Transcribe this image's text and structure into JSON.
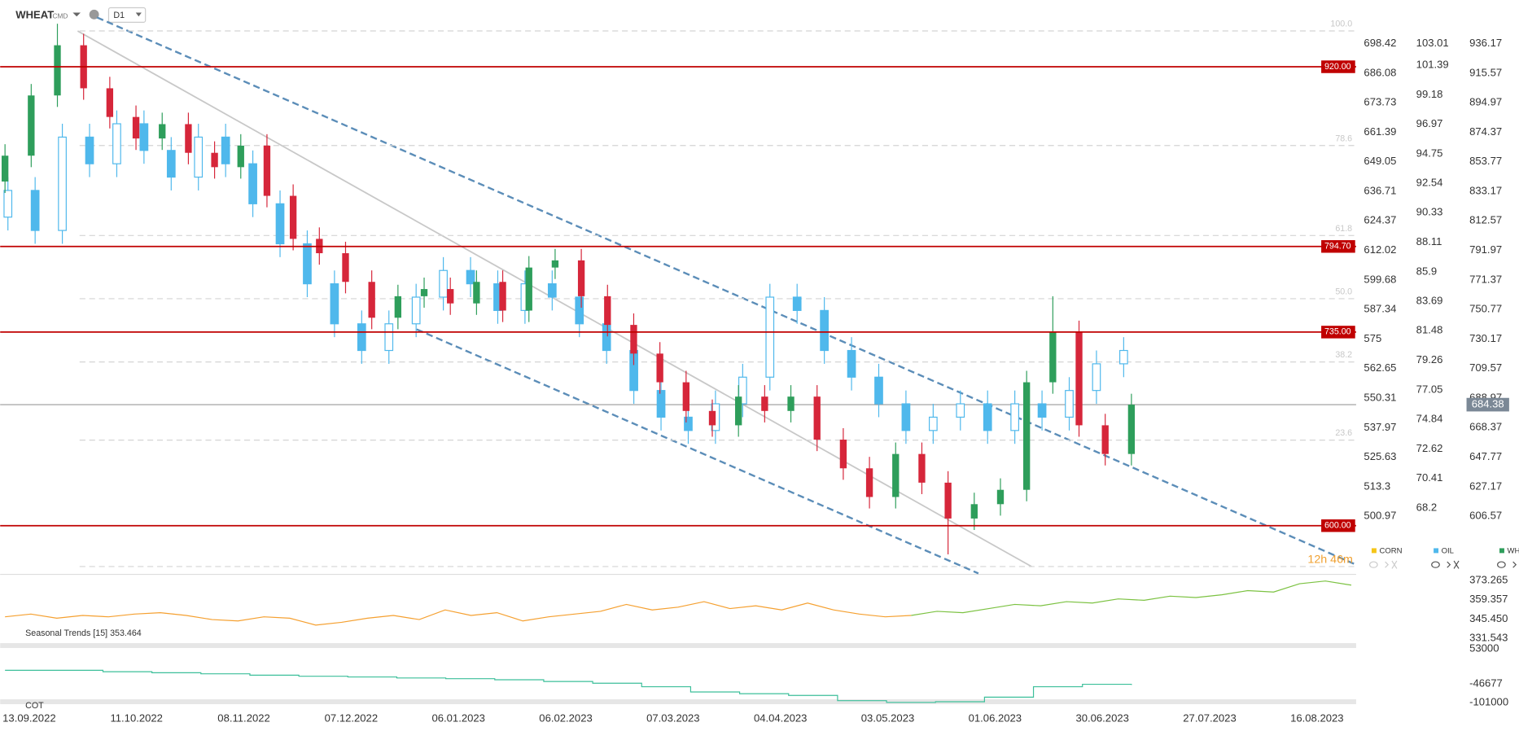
{
  "header": {
    "symbol": "WHEAT",
    "market": "CMD",
    "interval": "D1"
  },
  "chart_data": {
    "type": "candlestick",
    "categories": [
      "13.09.2022",
      "11.10.2022",
      "08.11.2022",
      "07.12.2022",
      "06.01.2023",
      "06.02.2023",
      "07.03.2023",
      "04.04.2023",
      "03.05.2023",
      "01.06.2023",
      "30.06.2023",
      "27.07.2023",
      "16.08.2023"
    ],
    "legend": [
      {
        "name": "CORN",
        "color": "#f5c518"
      },
      {
        "name": "OIL",
        "color": "#4fb8ec"
      },
      {
        "name": "WHEAT",
        "color": "#2e9e5b"
      }
    ],
    "countdown": "12h 46m",
    "corn_ticks": [
      698.42,
      686.08,
      673.73,
      661.39,
      649.05,
      636.71,
      624.37,
      612.02,
      599.68,
      587.34,
      575.0,
      562.65,
      550.31,
      537.97,
      525.63,
      513.3,
      500.97
    ],
    "corn_ylim": [
      477.9,
      716.63
    ],
    "oil_ticks": [
      103.01,
      101.39,
      99.18,
      96.97,
      94.75,
      92.54,
      90.33,
      88.11,
      85.9,
      83.69,
      81.48,
      79.26,
      77.05,
      74.84,
      72.62,
      70.41,
      68.2
    ],
    "oil_ylim": [
      63.43,
      106.28
    ],
    "yticks": [
      936.17,
      915.57,
      894.97,
      874.37,
      853.77,
      833.17,
      812.57,
      791.97,
      771.37,
      750.77,
      730.17,
      709.57,
      688.97,
      668.37,
      647.77,
      627.17,
      606.57
    ],
    "ylim": [
      568.07,
      966.56
    ],
    "levels": [
      {
        "value": 920,
        "label": "920.00"
      },
      {
        "value": 794.7,
        "label": "794.70"
      },
      {
        "value": 735,
        "label": "735.00"
      },
      {
        "value": 600,
        "label": "600.00"
      }
    ],
    "level_color": "#c00000",
    "last_price": 684.38,
    "fib": {
      "high": 945,
      "low": 571.5,
      "levels": [
        {
          "value": 100,
          "label": "100.0"
        },
        78.6,
        61.8,
        {
          "value": 50,
          "label": "50.0"
        },
        38.2,
        23.6,
        {
          "value": 0,
          "label": null
        }
      ]
    },
    "series": [
      {
        "name": "WHEAT",
        "up_color": "#2e9e5b",
        "down_color": "#d6263a",
        "open": [
          840,
          858,
          900,
          935,
          905,
          885,
          870,
          880,
          860,
          850,
          865,
          830,
          800,
          790,
          770,
          745,
          760,
          765,
          755,
          770,
          750,
          780,
          785,
          760,
          740,
          720,
          700,
          680,
          670,
          690,
          680,
          690,
          660,
          640,
          620,
          650,
          630,
          605,
          615,
          625,
          700,
          735,
          670,
          650
        ],
        "high": [
          866,
          908,
          950,
          943,
          913,
          893,
          888,
          888,
          868,
          873,
          873,
          838,
          808,
          798,
          778,
          768,
          773,
          773,
          778,
          778,
          788,
          793,
          793,
          768,
          748,
          728,
          708,
          688,
          698,
          698,
          698,
          698,
          668,
          648,
          658,
          658,
          638,
          623,
          633,
          708,
          760,
          743,
          678,
          692
        ],
        "low": [
          832,
          850,
          892,
          897,
          877,
          862,
          862,
          852,
          842,
          842,
          822,
          792,
          782,
          762,
          737,
          737,
          752,
          747,
          747,
          742,
          742,
          772,
          752,
          732,
          712,
          692,
          672,
          662,
          662,
          672,
          672,
          652,
          632,
          612,
          612,
          622,
          580,
          597,
          607,
          617,
          692,
          662,
          642,
          642
        ],
        "close": [
          858,
          900,
          935,
          905,
          885,
          870,
          880,
          860,
          850,
          865,
          830,
          800,
          790,
          770,
          745,
          760,
          765,
          755,
          770,
          750,
          780,
          785,
          760,
          740,
          720,
          700,
          680,
          670,
          690,
          680,
          690,
          660,
          640,
          620,
          650,
          630,
          605,
          615,
          625,
          700,
          735,
          670,
          650,
          684.38
        ]
      },
      {
        "name": "OIL",
        "color": "#4fb8ec",
        "open": [
          90,
          92,
          89,
          96,
          94,
          97,
          95,
          93,
          96,
          94,
          91,
          88,
          85,
          82,
          80,
          82,
          84,
          86,
          85,
          83,
          85,
          84,
          82,
          80,
          77,
          75,
          74,
          76,
          78,
          84,
          83,
          80,
          78,
          76,
          74,
          75,
          76,
          74,
          76,
          75,
          77,
          79
        ],
        "high": [
          93,
          93,
          97,
          97,
          98,
          98,
          96,
          97,
          97,
          95,
          92,
          89,
          86,
          83,
          83,
          85,
          87,
          87,
          86,
          86,
          86,
          85,
          83,
          81,
          78,
          76,
          77,
          79,
          85,
          85,
          84,
          81,
          79,
          77,
          76,
          77,
          77,
          77,
          77,
          78,
          80,
          81
        ],
        "low": [
          89,
          88,
          88,
          93,
          93,
          94,
          92,
          92,
          93,
          90,
          87,
          84,
          81,
          79,
          79,
          81,
          83,
          84,
          82,
          82,
          83,
          81,
          79,
          76,
          74,
          73,
          73,
          75,
          77,
          82,
          79,
          77,
          75,
          73,
          73,
          74,
          73,
          73,
          74,
          74,
          76,
          78
        ],
        "close": [
          92,
          89,
          96,
          94,
          97,
          95,
          93,
          96,
          94,
          91,
          88,
          85,
          82,
          80,
          82,
          84,
          86,
          85,
          83,
          85,
          84,
          82,
          80,
          77,
          75,
          74,
          76,
          78,
          84,
          83,
          80,
          78,
          76,
          74,
          75,
          76,
          74,
          76,
          75,
          77,
          79,
          80
        ]
      }
    ],
    "seasonal": {
      "title": "Seasonal  Trends [15] 353.464",
      "ylim": [
        330,
        375
      ],
      "yticks": [
        373.265,
        359.357,
        {
          "value": 345.45,
          "label": "345.450"
        },
        331.543
      ],
      "past_color": "#f5a030",
      "future_color": "#7cc242",
      "past": [
        347,
        349,
        346,
        348,
        347,
        349,
        350,
        348,
        345,
        344,
        347,
        346,
        341,
        343,
        346,
        348,
        345,
        352,
        348,
        350,
        344,
        347,
        349,
        351,
        356,
        352,
        354,
        358,
        353,
        355,
        352,
        357,
        352,
        349,
        347,
        348
      ],
      "future": [
        348,
        351,
        350,
        353,
        356,
        355,
        358,
        357,
        360,
        359,
        362,
        361,
        363,
        366,
        365,
        371,
        373,
        370
      ]
    },
    "cot": {
      "title": "COT",
      "ylim": [
        -105000,
        56000
      ],
      "yticks": [
        53000,
        -46677,
        -101000
      ],
      "color": "#3cbf9a",
      "values": [
        -8000,
        -8000,
        -12000,
        -15000,
        -18000,
        -22000,
        -25000,
        -27000,
        -30000,
        -32000,
        -35000,
        -40000,
        -45000,
        -55000,
        -70000,
        -75000,
        -80000,
        -95000,
        -100000,
        -98000,
        -85000,
        -55000,
        -48000,
        -50000
      ]
    }
  }
}
